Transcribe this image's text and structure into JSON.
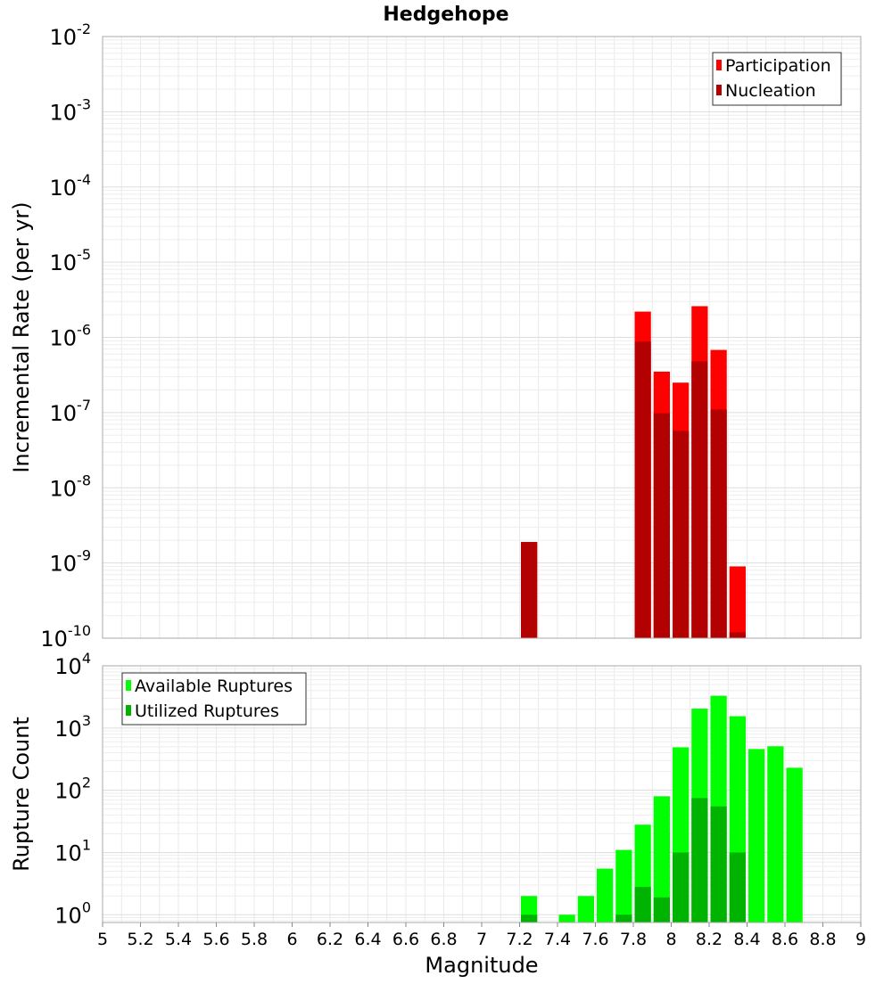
{
  "chart_data": [
    {
      "type": "bar",
      "title": "Hedgehope",
      "ylabel": "Incremental Rate (per yr)",
      "xlabel": "",
      "ylog": true,
      "ylim": [
        1e-10,
        0.01
      ],
      "xlim": [
        5,
        9
      ],
      "bin_width": 0.1,
      "grid": true,
      "legend_position": "top-right",
      "y_ticks": [
        {
          "base": "10",
          "exp": "-10"
        },
        {
          "base": "10",
          "exp": "-9"
        },
        {
          "base": "10",
          "exp": "-8"
        },
        {
          "base": "10",
          "exp": "-7"
        },
        {
          "base": "10",
          "exp": "-6"
        },
        {
          "base": "10",
          "exp": "-5"
        },
        {
          "base": "10",
          "exp": "-4"
        },
        {
          "base": "10",
          "exp": "-3"
        },
        {
          "base": "10",
          "exp": "-2"
        }
      ],
      "series": [
        {
          "name": "Participation",
          "color": "#ff0000",
          "x": [
            7.25,
            7.85,
            7.95,
            8.05,
            8.15,
            8.25,
            8.35
          ],
          "values": [
            1.9e-09,
            2.2e-06,
            3.5e-07,
            2.5e-07,
            2.6e-06,
            6.8e-07,
            9e-10
          ]
        },
        {
          "name": "Nucleation",
          "color": "#b30000",
          "x": [
            7.25,
            7.85,
            7.95,
            8.05,
            8.15,
            8.25,
            8.35
          ],
          "values": [
            1.9e-09,
            8.8e-07,
            9.8e-08,
            5.7e-08,
            4.8e-07,
            1.1e-07,
            1.2e-10
          ]
        }
      ]
    },
    {
      "type": "bar",
      "title": "",
      "ylabel": "Rupture Count",
      "xlabel": "Magnitude",
      "ylog": true,
      "ylim": [
        0.75,
        10000
      ],
      "xlim": [
        5,
        9
      ],
      "bin_width": 0.1,
      "grid": true,
      "legend_position": "top-left",
      "x_ticks": [
        "5",
        "5.2",
        "5.4",
        "5.6",
        "5.8",
        "6",
        "6.2",
        "6.4",
        "6.6",
        "6.8",
        "7",
        "7.2",
        "7.4",
        "7.6",
        "7.8",
        "8",
        "8.2",
        "8.4",
        "8.6",
        "8.8",
        "9"
      ],
      "y_ticks": [
        {
          "base": "10",
          "exp": "0"
        },
        {
          "base": "10",
          "exp": "1"
        },
        {
          "base": "10",
          "exp": "2"
        },
        {
          "base": "10",
          "exp": "3"
        },
        {
          "base": "10",
          "exp": "4"
        }
      ],
      "series": [
        {
          "name": "Available Ruptures",
          "color": "#00ff00",
          "x": [
            7.25,
            7.45,
            7.55,
            7.65,
            7.75,
            7.85,
            7.95,
            8.05,
            8.15,
            8.25,
            8.35,
            8.45,
            8.55,
            8.65
          ],
          "values": [
            2,
            1,
            2,
            5.5,
            11,
            28,
            80,
            490,
            2050,
            3300,
            1550,
            460,
            510,
            230
          ]
        },
        {
          "name": "Utilized Ruptures",
          "color": "#00b300",
          "x": [
            7.25,
            7.75,
            7.85,
            7.95,
            8.05,
            8.15,
            8.25,
            8.35
          ],
          "values": [
            1,
            1,
            2.8,
            1.9,
            10,
            75,
            55,
            10
          ]
        }
      ]
    }
  ]
}
